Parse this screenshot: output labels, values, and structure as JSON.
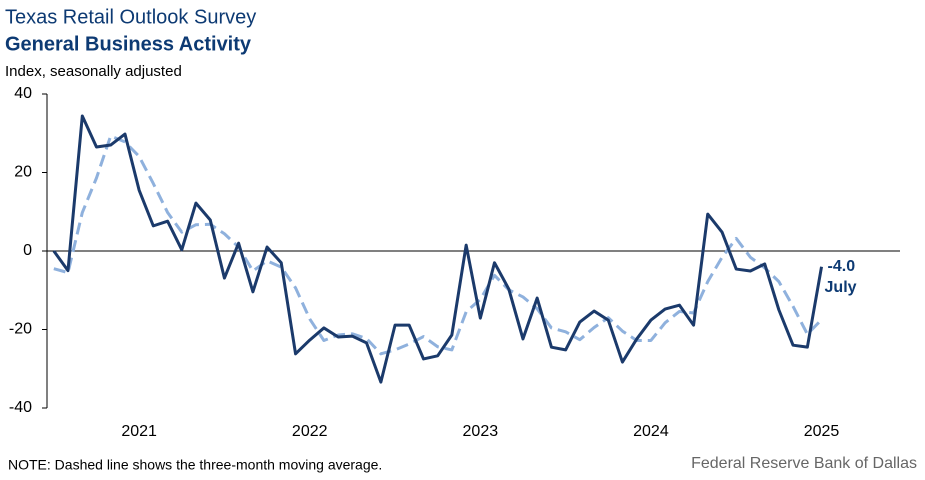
{
  "chart_data": {
    "type": "line",
    "title": "Texas Retail Outlook Survey",
    "subtitle": "General Business Activity",
    "y_label": "Index, seasonally adjusted",
    "note": "NOTE: Dashed line shows the three-month moving average.",
    "source": "Federal Reserve Bank of Dallas",
    "annotation": "July",
    "x": [
      2021,
      2021.083,
      2021.167,
      2021.25,
      2021.333,
      2021.417,
      2021.5,
      2021.583,
      2021.667,
      2021.75,
      2021.833,
      2021.917,
      2022,
      2022.083,
      2022.167,
      2022.25,
      2022.333,
      2022.417,
      2022.5,
      2022.583,
      2022.667,
      2022.75,
      2022.833,
      2022.917,
      2023,
      2023.083,
      2023.167,
      2023.25,
      2023.333,
      2023.417,
      2023.5,
      2023.583,
      2023.667,
      2023.75,
      2023.833,
      2023.917,
      2024,
      2024.083,
      2024.167,
      2024.25,
      2024.333,
      2024.417,
      2024.5,
      2024.583,
      2024.667,
      2024.75,
      2024.833,
      2024.917,
      2025,
      2025.083,
      2025.167,
      2025.25,
      2025.333,
      2025.417,
      2025.5
    ],
    "series": [
      {
        "color": "#1b3a6b",
        "dashed": false,
        "values": [
          0,
          -5,
          34.4,
          26.5,
          27,
          29.8,
          15.5,
          6.4,
          7.6,
          0.3,
          12.2,
          7.9,
          -6.9,
          2,
          -10.4,
          1,
          -3,
          -26.2,
          -22.7,
          -19.6,
          -21.9,
          -21.7,
          -23.4,
          -33.4,
          -18.9,
          -18.9,
          -27.5,
          -26.7,
          -21.4,
          1.5,
          -17.1,
          -3,
          -9.7,
          -22.4,
          -12,
          -24.5,
          -25.2,
          -18.1,
          -15.3,
          -17.6,
          -28.3,
          -22.4,
          -17.6,
          -14.8,
          -13.8,
          -18.9,
          9.4,
          4.8,
          -4.6,
          -5.1,
          -3.3,
          -15,
          -24,
          -24.5,
          -4
        ],
        "value_labels": [
          null,
          null,
          null,
          null,
          null,
          null,
          null,
          null,
          null,
          null,
          null,
          null,
          null,
          null,
          null,
          null,
          null,
          null,
          null,
          null,
          null,
          null,
          null,
          null,
          null,
          null,
          null,
          null,
          null,
          null,
          null,
          null,
          null,
          null,
          null,
          null,
          null,
          null,
          null,
          null,
          null,
          null,
          null,
          null,
          null,
          null,
          null,
          null,
          null,
          null,
          null,
          null,
          null,
          null,
          "-4.0"
        ]
      },
      {
        "color": "#8fb1dd",
        "dashed": true,
        "values": [
          -4.5,
          -5.5,
          9.8,
          18.6,
          29.3,
          27.8,
          24.1,
          17.2,
          9.8,
          4.8,
          6.7,
          6.8,
          4.4,
          1,
          -5.1,
          -2.5,
          -4.1,
          -9.4,
          -17.3,
          -22.8,
          -21.4,
          -21.1,
          -22.3,
          -26.2,
          -25.2,
          -23.7,
          -21.8,
          -24.4,
          -25.2,
          -15.5,
          -12.3,
          -6.2,
          -9.9,
          -11.7,
          -14.7,
          -19.6,
          -20.6,
          -22.6,
          -19.5,
          -17,
          -20.4,
          -22.8,
          -22.8,
          -18.3,
          -15.4,
          -15.8,
          -7.8,
          -1.6,
          3.2,
          -1.6,
          -4.3,
          -7.8,
          -14.1,
          -21.2,
          -17.5
        ]
      }
    ],
    "xlim": [
      2020.96,
      2025.96
    ],
    "xticks": [
      {
        "value": 2021.5,
        "label": "2021"
      },
      {
        "value": 2022.5,
        "label": "2022"
      },
      {
        "value": 2023.5,
        "label": "2023"
      },
      {
        "value": 2024.5,
        "label": "2024"
      },
      {
        "value": 2025.5,
        "label": "2025"
      }
    ],
    "ylim": [
      -40,
      40
    ],
    "yticks": [
      -40,
      -20,
      0,
      20,
      40
    ],
    "grid": false
  }
}
